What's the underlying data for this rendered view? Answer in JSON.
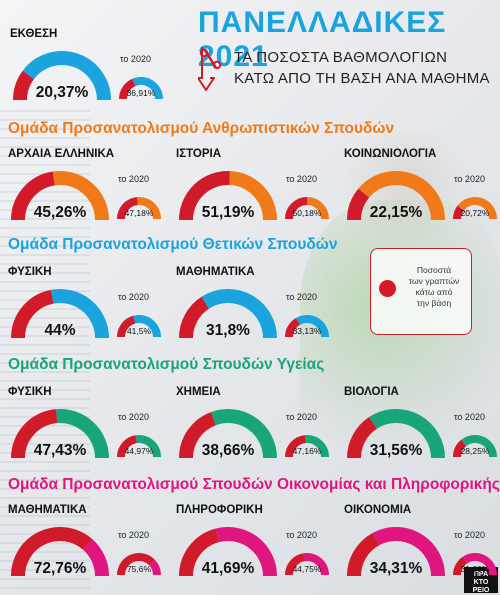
{
  "header": {
    "title": "ΠΑΝΕΛΛΑΔΙΚΕΣ 2021",
    "subtitle_line1": "ΤΑ ΠΟΣΟΣΤΑ ΒΑΘΜΟΛΟΓΙΩΝ",
    "subtitle_line2": "ΚΑΤΩ ΑΠΟ ΤΗ ΒΑΣΗ ΑΝΑ ΜΑΘΗΜΑ"
  },
  "prev_year_label": "το 2020",
  "legend": {
    "text": "Ποσοστά\nτων γραπτών\nκάτω από\nτην βάση"
  },
  "logo": {
    "text": "ΠΡΑ\nΚΤΟ\nΡΕΙΟ"
  },
  "colors": {
    "below_base": "#d11a2a",
    "prev_2020": "#1aa3dd",
    "group_humanities": "#f07a1a",
    "group_sciences": "#1aa3dd",
    "group_health": "#19a57a",
    "group_economics": "#e0157d",
    "title": "#1aa3dd"
  },
  "groups": {
    "humanities": "Ομάδα Προσανατολισμού Ανθρωπιστικών Σπουδών",
    "sciences": "Ομάδα Προσανατολισμού Θετικών Σπουδών",
    "health": "Ομάδα Προσανατολισμού Σπουδών Υγείας",
    "economics": "Ομάδα Προσανατολισμού Σπουδών Οικονομίας και Πληροφορικής"
  },
  "chart_data": {
    "type": "gauge",
    "title": "ΠΑΝΕΛΛΑΔΙΚΕΣ 2021",
    "unit": "%",
    "series": [
      {
        "name": "2021"
      },
      {
        "name": "2020"
      }
    ],
    "items": [
      {
        "group": "",
        "subject": "ΕΚΘΕΣΗ",
        "value_2021": 20.37,
        "label_2021": "20,37%",
        "value_2020": 36.91,
        "label_2020": "36,91%"
      },
      {
        "group": "humanities",
        "subject": "ΑΡΧΑΙΑ ΕΛΛΗΝΙΚΑ",
        "value_2021": 45.26,
        "label_2021": "45,26%",
        "value_2020": 47.18,
        "label_2020": "47,18%"
      },
      {
        "group": "humanities",
        "subject": "ΙΣΤΟΡΙΑ",
        "value_2021": 51.19,
        "label_2021": "51,19%",
        "value_2020": 50.18,
        "label_2020": "50,18%"
      },
      {
        "group": "humanities",
        "subject": "ΚΟΙΝΩΝΙΟΛΟΓΙΑ",
        "value_2021": 22.15,
        "label_2021": "22,15%",
        "value_2020": 20.72,
        "label_2020": "20,72%"
      },
      {
        "group": "sciences",
        "subject": "ΦΥΣΙΚΗ",
        "value_2021": 44,
        "label_2021": "44%",
        "value_2020": 41.5,
        "label_2020": "41,5%"
      },
      {
        "group": "sciences",
        "subject": "ΜΑΘΗΜΑΤΙΚΑ",
        "value_2021": 31.8,
        "label_2021": "31,8%",
        "value_2020": 33.13,
        "label_2020": "33,13%"
      },
      {
        "group": "health",
        "subject": "ΦΥΣΙΚΗ",
        "value_2021": 47.43,
        "label_2021": "47,43%",
        "value_2020": 44.97,
        "label_2020": "44,97%"
      },
      {
        "group": "health",
        "subject": "ΧΗΜΕΙΑ",
        "value_2021": 38.66,
        "label_2021": "38,66%",
        "value_2020": 47.16,
        "label_2020": "47,16%"
      },
      {
        "group": "health",
        "subject": "ΒΙΟΛΟΓΙΑ",
        "value_2021": 31.56,
        "label_2021": "31,56%",
        "value_2020": 28.25,
        "label_2020": "28,25%"
      },
      {
        "group": "economics",
        "subject": "ΜΑΘΗΜΑΤΙΚΑ",
        "value_2021": 72.76,
        "label_2021": "72,76%",
        "value_2020": 75.6,
        "label_2020": "75,6%"
      },
      {
        "group": "economics",
        "subject": "ΠΛΗΡΟΦΟΡΙΚΗ",
        "value_2021": 41.69,
        "label_2021": "41,69%",
        "value_2020": 44.75,
        "label_2020": "44,75%"
      },
      {
        "group": "economics",
        "subject": "ΟΙΚΟΝΟΜΙΑ",
        "value_2021": 34.31,
        "label_2021": "34,31%",
        "value_2020": 31.6,
        "label_2020": "31,60%"
      }
    ]
  }
}
